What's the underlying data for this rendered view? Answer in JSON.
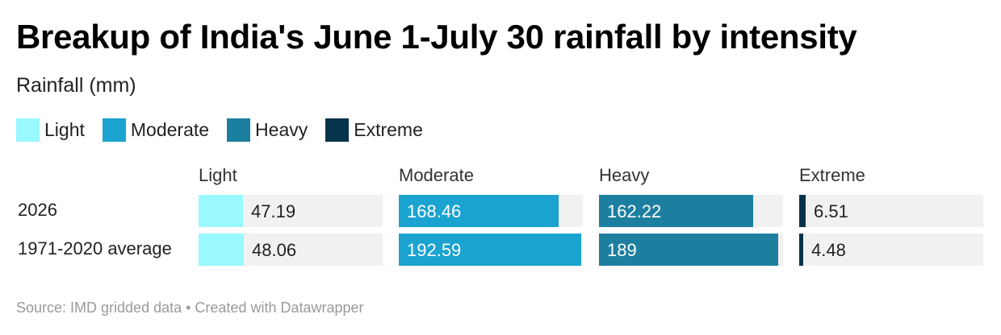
{
  "chart_data": {
    "type": "bar",
    "title": "Breakup of India's June 1-July 30 rainfall by intensity",
    "subtitle": "Rainfall (mm)",
    "categories": [
      "2026",
      "1971-2020 average"
    ],
    "series": [
      {
        "name": "Light",
        "color": "#99f9ff",
        "values": [
          47.19,
          48.06
        ],
        "labels": [
          "47.19",
          "48.06"
        ]
      },
      {
        "name": "Moderate",
        "color": "#1aa3cf",
        "values": [
          168.46,
          192.59
        ],
        "labels": [
          "168.46",
          "192.59"
        ]
      },
      {
        "name": "Heavy",
        "color": "#1d7f9f",
        "values": [
          162.22,
          189
        ],
        "labels": [
          "162.22",
          "189"
        ]
      },
      {
        "name": "Extreme",
        "color": "#04344b",
        "values": [
          6.51,
          4.48
        ],
        "labels": [
          "6.51",
          "4.48"
        ]
      }
    ],
    "xlim": [
      0,
      194
    ],
    "legend": "top-left",
    "source": "Source: IMD gridded data • Created with Datawrapper"
  }
}
